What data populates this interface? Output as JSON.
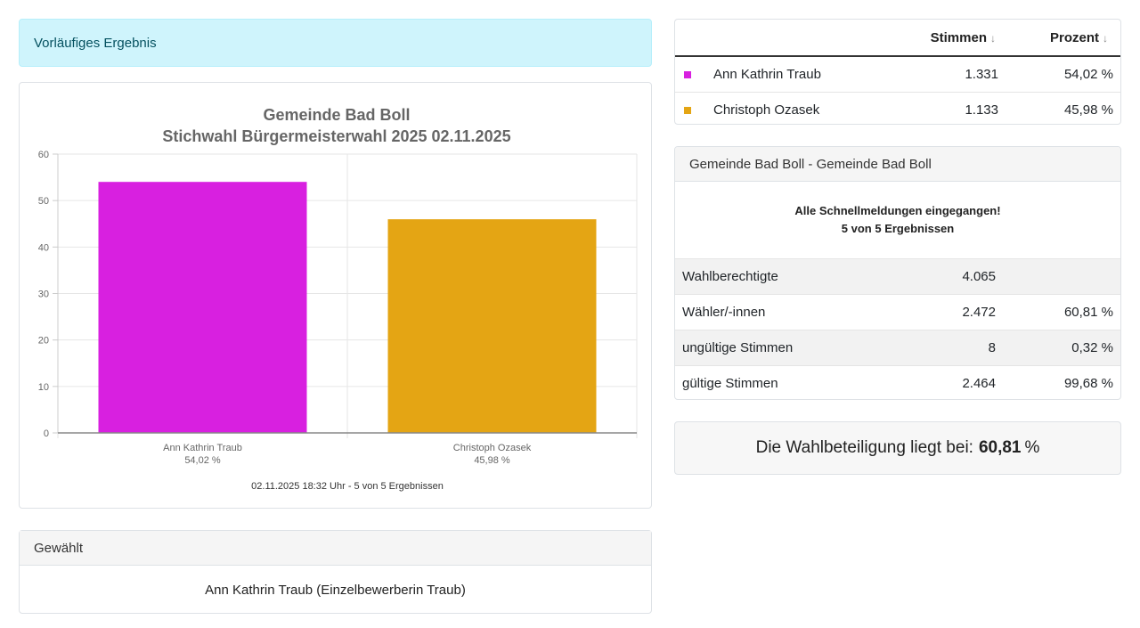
{
  "alert": {
    "text": "Vorläufiges Ergebnis"
  },
  "chart_data": {
    "type": "bar",
    "title": "Gemeinde Bad Boll",
    "subtitle": "Stichwahl Bürgermeisterwahl 2025 02.11.2025",
    "categories": [
      "Ann Kathrin Traub",
      "Christoph Ozasek"
    ],
    "category_sublabels": [
      "54,02 %",
      "45,98 %"
    ],
    "values": [
      54.02,
      45.98
    ],
    "colors": [
      "#d820e0",
      "#e4a514"
    ],
    "ylim": [
      0,
      60
    ],
    "yticks": [
      0,
      10,
      20,
      30,
      40,
      50,
      60
    ],
    "grid": true,
    "xlabel": "",
    "ylabel": "",
    "footnote": "02.11.2025 18:32 Uhr - 5 von 5 Ergebnissen"
  },
  "elected": {
    "header": "Gewählt",
    "name": "Ann Kathrin Traub (Einzelbewerberin Traub)"
  },
  "votes_table": {
    "col_stimmen": "Stimmen",
    "col_prozent": "Prozent",
    "sort_icon": "↓",
    "rows": [
      {
        "name": "Ann Kathrin Traub",
        "stimmen": "1.331",
        "prozent": "54,02 %",
        "color": "#d820e0"
      },
      {
        "name": "Christoph Ozasek",
        "stimmen": "1.133",
        "prozent": "45,98 %",
        "color": "#e4a514"
      }
    ]
  },
  "stats": {
    "header": "Gemeinde Bad Boll - Gemeinde Bad Boll",
    "notice_line1": "Alle Schnellmeldungen eingegangen!",
    "notice_line2": "5 von 5 Ergebnissen",
    "rows": [
      {
        "label": "Wahlberechtigte",
        "value": "4.065",
        "percent": ""
      },
      {
        "label": "Wähler/-innen",
        "value": "2.472",
        "percent": "60,81 %"
      },
      {
        "label": "ungültige Stimmen",
        "value": "8",
        "percent": "0,32 %"
      },
      {
        "label": "gültige Stimmen",
        "value": "2.464",
        "percent": "99,68 %"
      }
    ]
  },
  "turnout": {
    "prefix": "Die Wahlbeteiligung liegt bei:",
    "value": "60,81",
    "suffix": "%"
  }
}
